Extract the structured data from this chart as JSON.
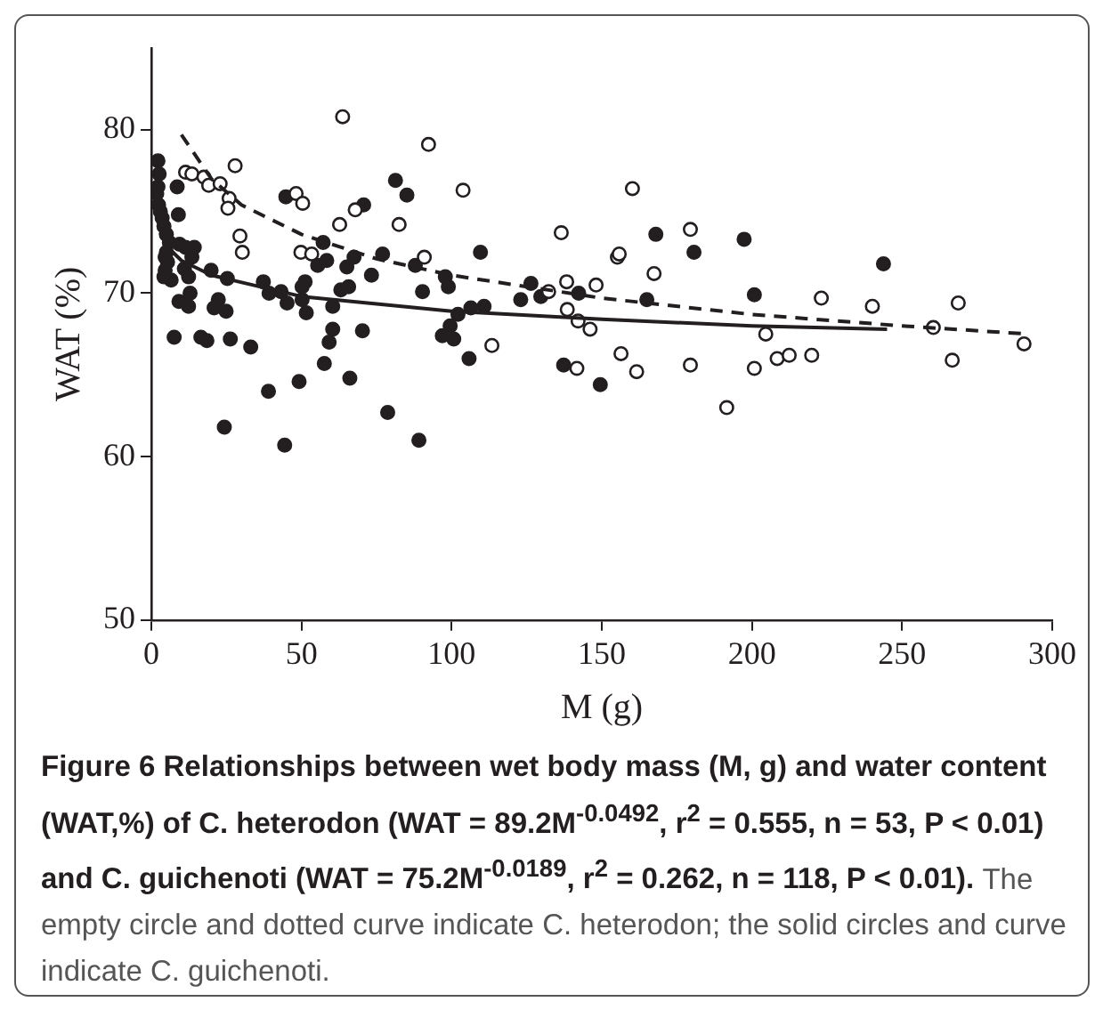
{
  "chart_data": {
    "type": "scatter",
    "xlabel": "M (g)",
    "ylabel": "WAT (%)",
    "xlim": [
      0,
      300
    ],
    "xticks": [
      0,
      50,
      100,
      150,
      200,
      250,
      300
    ],
    "ylim": [
      50,
      85
    ],
    "yticks": [
      50,
      60,
      70,
      80
    ],
    "grid": false,
    "legend": false,
    "marker": "circle",
    "annotations": [
      "Figure 6 Relationships between wet body mass (M, g) and water content (WAT,%) of C. heterodon (WAT = 89.2M$^{-0.0492}$, r$^{2}$ = 0.555, n = 53, P < 0.01) and C. guichenoti (WAT = 75.2M$^{-0.0189}$, r$^{2}$ = 0.262, n = 118, P < 0.01).",
      "The empty circle and dotted curve indicate C. heterodon; the solid circles and curve indicate C. guichenoti."
    ],
    "series": [
      {
        "type": "scatter",
        "color": "#231f20",
        "x": [
          63.7,
          11.4,
          13.5,
          17.5,
          19.1,
          22.9,
          27.9,
          25.9,
          25.5,
          29.5,
          30.3,
          48.2,
          50.4,
          62.7,
          67.9,
          49.8,
          53.4,
          92.3,
          103.8,
          82.5,
          90.9,
          113.4,
          160.2,
          136.5,
          179.5,
          155.2,
          155.8,
          167.4,
          132.3,
          138.3,
          148.1,
          138.5,
          142.1,
          146.1,
          156.4,
          141.7,
          161.6,
          179.5,
          223.1,
          240.1,
          268.7,
          204.6,
          260.4,
          290.6,
          266.7,
          200.8,
          208.4,
          212.4,
          219.9,
          191.6
        ],
        "values": [
          80.8,
          77.4,
          77.3,
          77.1,
          76.6,
          76.7,
          77.8,
          75.8,
          75.2,
          73.5,
          72.5,
          76.1,
          75.5,
          74.2,
          75.1,
          72.5,
          72.4,
          79.1,
          76.3,
          74.2,
          72.2,
          66.8,
          76.4,
          73.7,
          73.9,
          72.2,
          72.4,
          71.2,
          70.1,
          70.7,
          70.5,
          69.0,
          68.3,
          67.8,
          66.3,
          65.4,
          65.2,
          65.6,
          69.7,
          69.2,
          69.4,
          67.5,
          67.9,
          66.9,
          65.9,
          65.4,
          66.0,
          66.2,
          66.2,
          63.0
        ]
      },
      {
        "type": "scatter",
        "color": "#231f20",
        "x": [
          2.2,
          2.6,
          2.2,
          1.8,
          2.4,
          3.0,
          3.6,
          4.2,
          5.0,
          6.0,
          5.0,
          4.6,
          5.4,
          4.6,
          4.2,
          6.6,
          8.6,
          9.0,
          9.4,
          11.4,
          14.3,
          13.5,
          11.0,
          12.4,
          9.2,
          12.9,
          12.4,
          7.6,
          16.5,
          18.5,
          19.9,
          22.3,
          20.9,
          24.9,
          25.3,
          26.3,
          33.1,
          24.3,
          37.3,
          39.2,
          43.2,
          39.0,
          44.4,
          44.8,
          45.2,
          49.2,
          50.2,
          51.2,
          51.6,
          50.2,
          57.2,
          58.4,
          55.4,
          60.4,
          59.2,
          60.4,
          57.6,
          63.1,
          65.7,
          65.1,
          66.1,
          70.7,
          70.3,
          67.5,
          73.3,
          81.3,
          85.1,
          77.0,
          87.9,
          97.9,
          90.3,
          98.9,
          109.6,
          102.1,
          106.4,
          110.8,
          99.5,
          96.9,
          100.7,
          105.8,
          78.7,
          89.1,
          126.4,
          123.0,
          129.7,
          142.3,
          168.0,
          180.7,
          165.0,
          137.3,
          149.5,
          197.4,
          200.8,
          243.8
        ],
        "values": [
          78.1,
          77.3,
          76.5,
          76.1,
          75.4,
          75.0,
          74.6,
          74.1,
          73.6,
          73.1,
          72.5,
          72.2,
          71.9,
          71.4,
          71.0,
          70.8,
          76.5,
          74.8,
          73.0,
          72.8,
          72.8,
          72.2,
          71.5,
          71.0,
          69.5,
          70.0,
          69.2,
          67.3,
          67.3,
          67.1,
          71.4,
          69.6,
          69.1,
          68.9,
          70.9,
          67.2,
          66.7,
          61.8,
          70.7,
          70.0,
          70.1,
          64.0,
          60.7,
          75.9,
          69.4,
          64.6,
          70.4,
          70.7,
          68.8,
          69.6,
          73.1,
          72.0,
          71.7,
          69.2,
          67.0,
          67.8,
          65.7,
          70.2,
          70.4,
          71.6,
          64.8,
          75.4,
          67.7,
          72.2,
          71.1,
          76.9,
          76.0,
          72.4,
          71.7,
          71.0,
          70.1,
          70.4,
          72.5,
          68.7,
          69.1,
          69.2,
          68.0,
          67.4,
          67.2,
          66.0,
          62.7,
          61.0,
          70.6,
          69.6,
          69.8,
          70.0,
          73.6,
          72.5,
          69.6,
          65.6,
          64.4,
          73.3,
          69.9,
          71.8
        ]
      },
      {
        "type": "line",
        "color": "#231f20",
        "line_style": "dashed",
        "marker": "none",
        "x": [
          10,
          20,
          30,
          50,
          75,
          100,
          150,
          200,
          250,
          292
        ],
        "values": [
          79.7,
          77.0,
          75.4,
          73.6,
          72.1,
          71.1,
          69.7,
          68.7,
          68.0,
          67.5
        ]
      },
      {
        "type": "line",
        "color": "#231f20",
        "line_style": "solid",
        "marker": "none",
        "x": [
          3,
          5,
          10,
          20,
          50,
          100,
          150,
          200,
          245
        ],
        "values": [
          73.7,
          72.9,
          72.0,
          71.1,
          69.8,
          68.9,
          68.4,
          68.0,
          67.8
        ]
      }
    ]
  }
}
